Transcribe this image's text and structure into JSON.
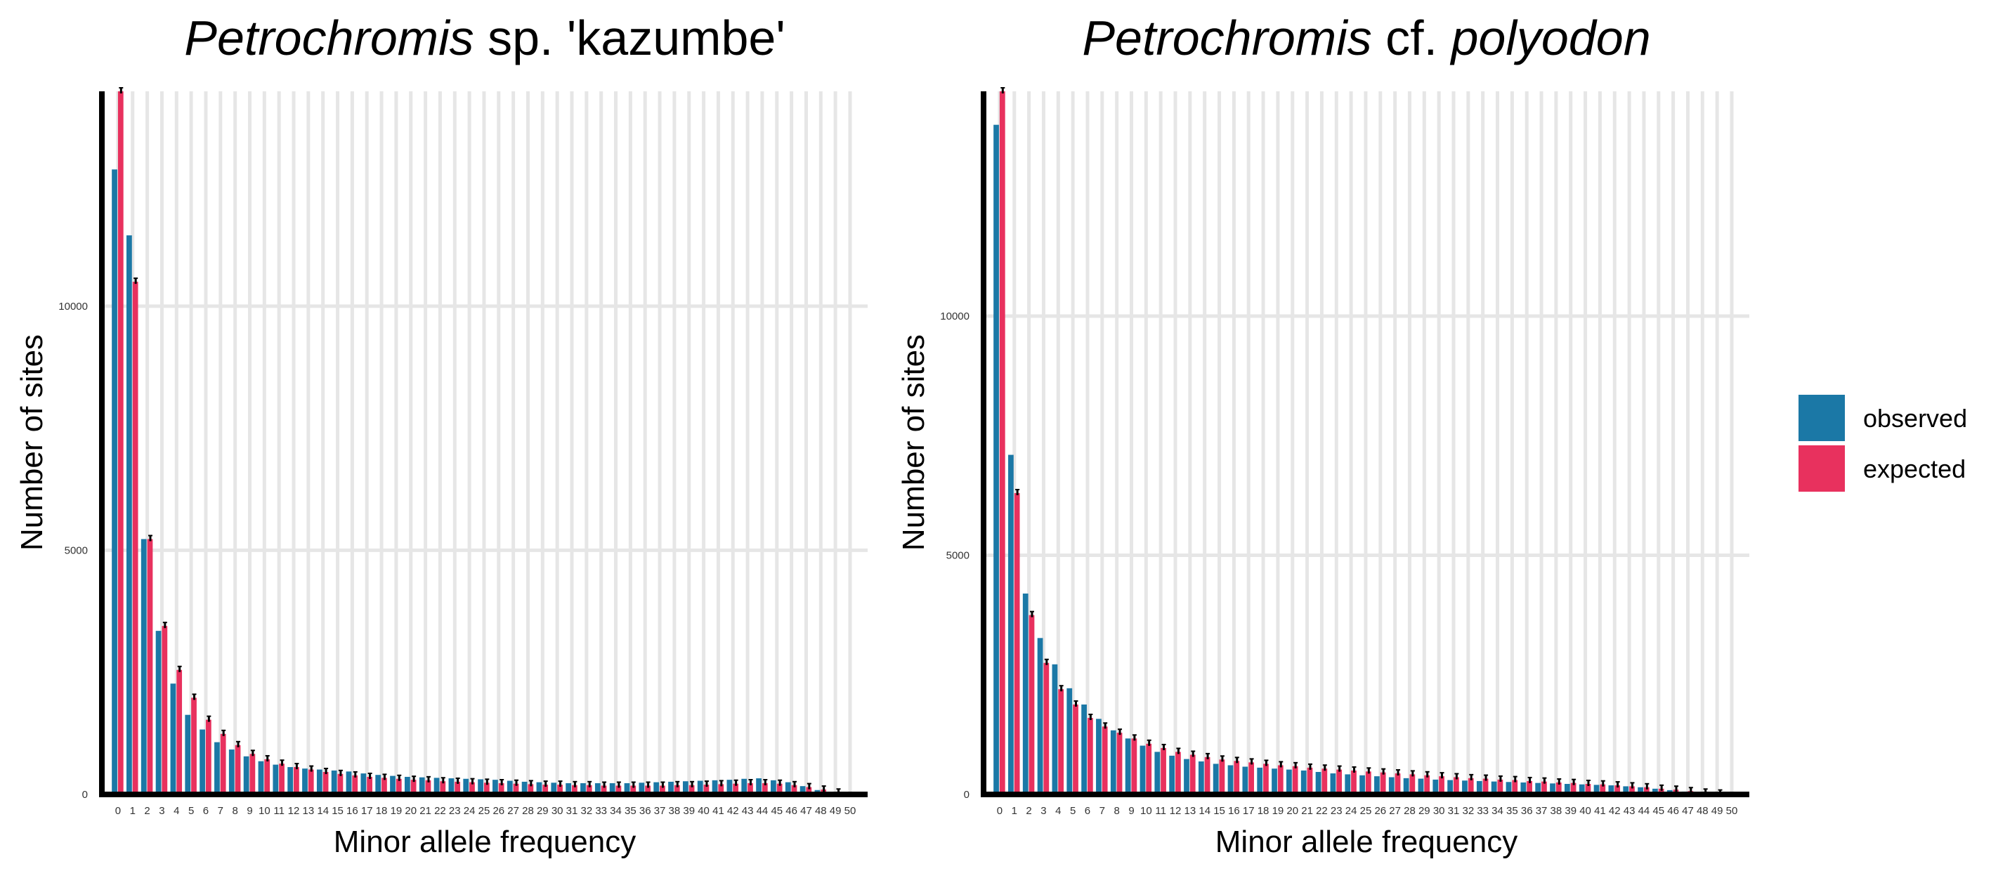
{
  "legend": {
    "entries": [
      {
        "label": "observed",
        "color": "#1b78a6"
      },
      {
        "label": "expected",
        "color": "#e8315e"
      }
    ]
  },
  "chart_data": [
    {
      "type": "bar",
      "title": {
        "italic": "Petrochromis",
        "rest": " sp. 'kazumbe'"
      },
      "xlabel": "Minor allele frequency",
      "ylabel": "Number of sites",
      "ylim": [
        0,
        14400
      ],
      "yticks": [
        0,
        5000,
        10000
      ],
      "categories": [
        "0",
        "1",
        "2",
        "3",
        "4",
        "5",
        "6",
        "7",
        "8",
        "9",
        "10",
        "11",
        "12",
        "13",
        "14",
        "15",
        "16",
        "17",
        "18",
        "19",
        "20",
        "21",
        "22",
        "23",
        "24",
        "25",
        "26",
        "27",
        "28",
        "29",
        "30",
        "31",
        "32",
        "33",
        "34",
        "35",
        "36",
        "37",
        "38",
        "39",
        "40",
        "41",
        "42",
        "43",
        "44",
        "45",
        "46",
        "47",
        "48",
        "49",
        "50"
      ],
      "series": [
        {
          "name": "observed",
          "color": "#1b78a6",
          "values": [
            12800,
            11450,
            5230,
            3350,
            2270,
            1630,
            1330,
            1070,
            920,
            780,
            680,
            610,
            560,
            530,
            510,
            490,
            470,
            430,
            400,
            380,
            360,
            350,
            340,
            330,
            320,
            310,
            300,
            280,
            260,
            250,
            240,
            230,
            230,
            230,
            230,
            230,
            240,
            250,
            260,
            270,
            280,
            290,
            300,
            320,
            330,
            290,
            250,
            170,
            90,
            40,
            0
          ]
        },
        {
          "name": "expected",
          "color": "#e8315e",
          "values": [
            14400,
            10500,
            5230,
            3450,
            2550,
            1980,
            1530,
            1240,
            1010,
            830,
            720,
            630,
            560,
            510,
            460,
            420,
            390,
            360,
            340,
            320,
            300,
            290,
            270,
            260,
            250,
            240,
            230,
            220,
            210,
            200,
            200,
            190,
            190,
            180,
            180,
            180,
            180,
            180,
            190,
            190,
            200,
            210,
            220,
            230,
            230,
            220,
            190,
            150,
            100,
            40,
            0
          ]
        }
      ]
    },
    {
      "type": "bar",
      "title": {
        "italic": "Petrochromis",
        "rest": " cf. ",
        "italic2": "polyodon"
      },
      "xlabel": "Minor allele frequency",
      "ylabel": "Number of sites",
      "ylim": [
        0,
        14700
      ],
      "yticks": [
        0,
        5000,
        10000
      ],
      "categories": [
        "0",
        "1",
        "2",
        "3",
        "4",
        "5",
        "6",
        "7",
        "8",
        "9",
        "10",
        "11",
        "12",
        "13",
        "14",
        "15",
        "16",
        "17",
        "18",
        "19",
        "20",
        "21",
        "22",
        "23",
        "24",
        "25",
        "26",
        "27",
        "28",
        "29",
        "30",
        "31",
        "32",
        "33",
        "34",
        "35",
        "36",
        "37",
        "38",
        "39",
        "40",
        "41",
        "42",
        "43",
        "44",
        "45",
        "46",
        "47",
        "48",
        "49",
        "50"
      ],
      "series": [
        {
          "name": "observed",
          "color": "#1b78a6",
          "values": [
            14000,
            7100,
            4200,
            3270,
            2720,
            2220,
            1880,
            1580,
            1340,
            1170,
            1020,
            890,
            810,
            740,
            690,
            640,
            610,
            580,
            560,
            540,
            520,
            500,
            470,
            440,
            420,
            400,
            380,
            360,
            340,
            330,
            310,
            300,
            290,
            280,
            270,
            260,
            250,
            240,
            230,
            220,
            210,
            200,
            190,
            170,
            150,
            120,
            90,
            60,
            30,
            10,
            0
          ]
        },
        {
          "name": "expected",
          "color": "#e8315e",
          "values": [
            14700,
            6300,
            3750,
            2750,
            2200,
            1880,
            1600,
            1420,
            1290,
            1170,
            1060,
            970,
            890,
            830,
            780,
            730,
            700,
            670,
            640,
            610,
            590,
            560,
            540,
            520,
            500,
            480,
            460,
            440,
            420,
            400,
            380,
            360,
            340,
            330,
            310,
            300,
            280,
            270,
            250,
            240,
            220,
            210,
            190,
            170,
            150,
            120,
            100,
            70,
            40,
            20,
            0
          ]
        }
      ]
    }
  ]
}
